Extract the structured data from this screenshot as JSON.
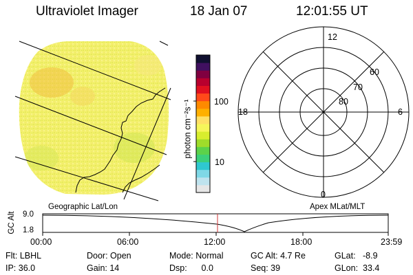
{
  "header": {
    "title": "Ultraviolet Imager",
    "date": "18 Jan 07",
    "time": "12:01:55 UT"
  },
  "colorbar": {
    "unit_label": "photon cm⁻²s⁻¹",
    "tick_100": "100",
    "tick_10": "10",
    "colors": [
      "#e6e6e6",
      "#bfe3ee",
      "#7fd8e6",
      "#2fc8d0",
      "#3cd07a",
      "#5cd24a",
      "#9fdc2a",
      "#d8ee2e",
      "#f6f65a",
      "#ffe066",
      "#ffb000",
      "#ff8a00",
      "#ff4a1a",
      "#e01020",
      "#b8002e",
      "#800040",
      "#401060",
      "#101030"
    ]
  },
  "left_panel": {
    "label": "Geographic Lat/Lon",
    "disk_fill": "#f2f07a"
  },
  "right_panel": {
    "label": "Apex MLat/MLT",
    "mlt_labels": {
      "top": "12",
      "right": "6",
      "bottom": "0",
      "left": "18"
    },
    "lat_labels": [
      "60",
      "70",
      "80"
    ]
  },
  "altitude_strip": {
    "axis_label": "GC Alt",
    "y_top": "9.0",
    "y_bottom": "1.8",
    "x_ticks": [
      "00:00",
      "06:00",
      "12:00",
      "18:00",
      "23:59"
    ],
    "marker_color": "#cc3333"
  },
  "footer": {
    "row1": {
      "flt": "Flt: LBHL",
      "door": "Door: Open",
      "mode": "Mode: Normal",
      "gc_alt": "GC Alt: 4.7 Re",
      "glat": "GLat:   -8.9"
    },
    "row2": {
      "ip": "IP: 36.0",
      "gain": "Gain: 14",
      "dsp": "Dsp:      0.0",
      "seq": "Seq: 39",
      "glon": "GLon:  33.4"
    }
  }
}
